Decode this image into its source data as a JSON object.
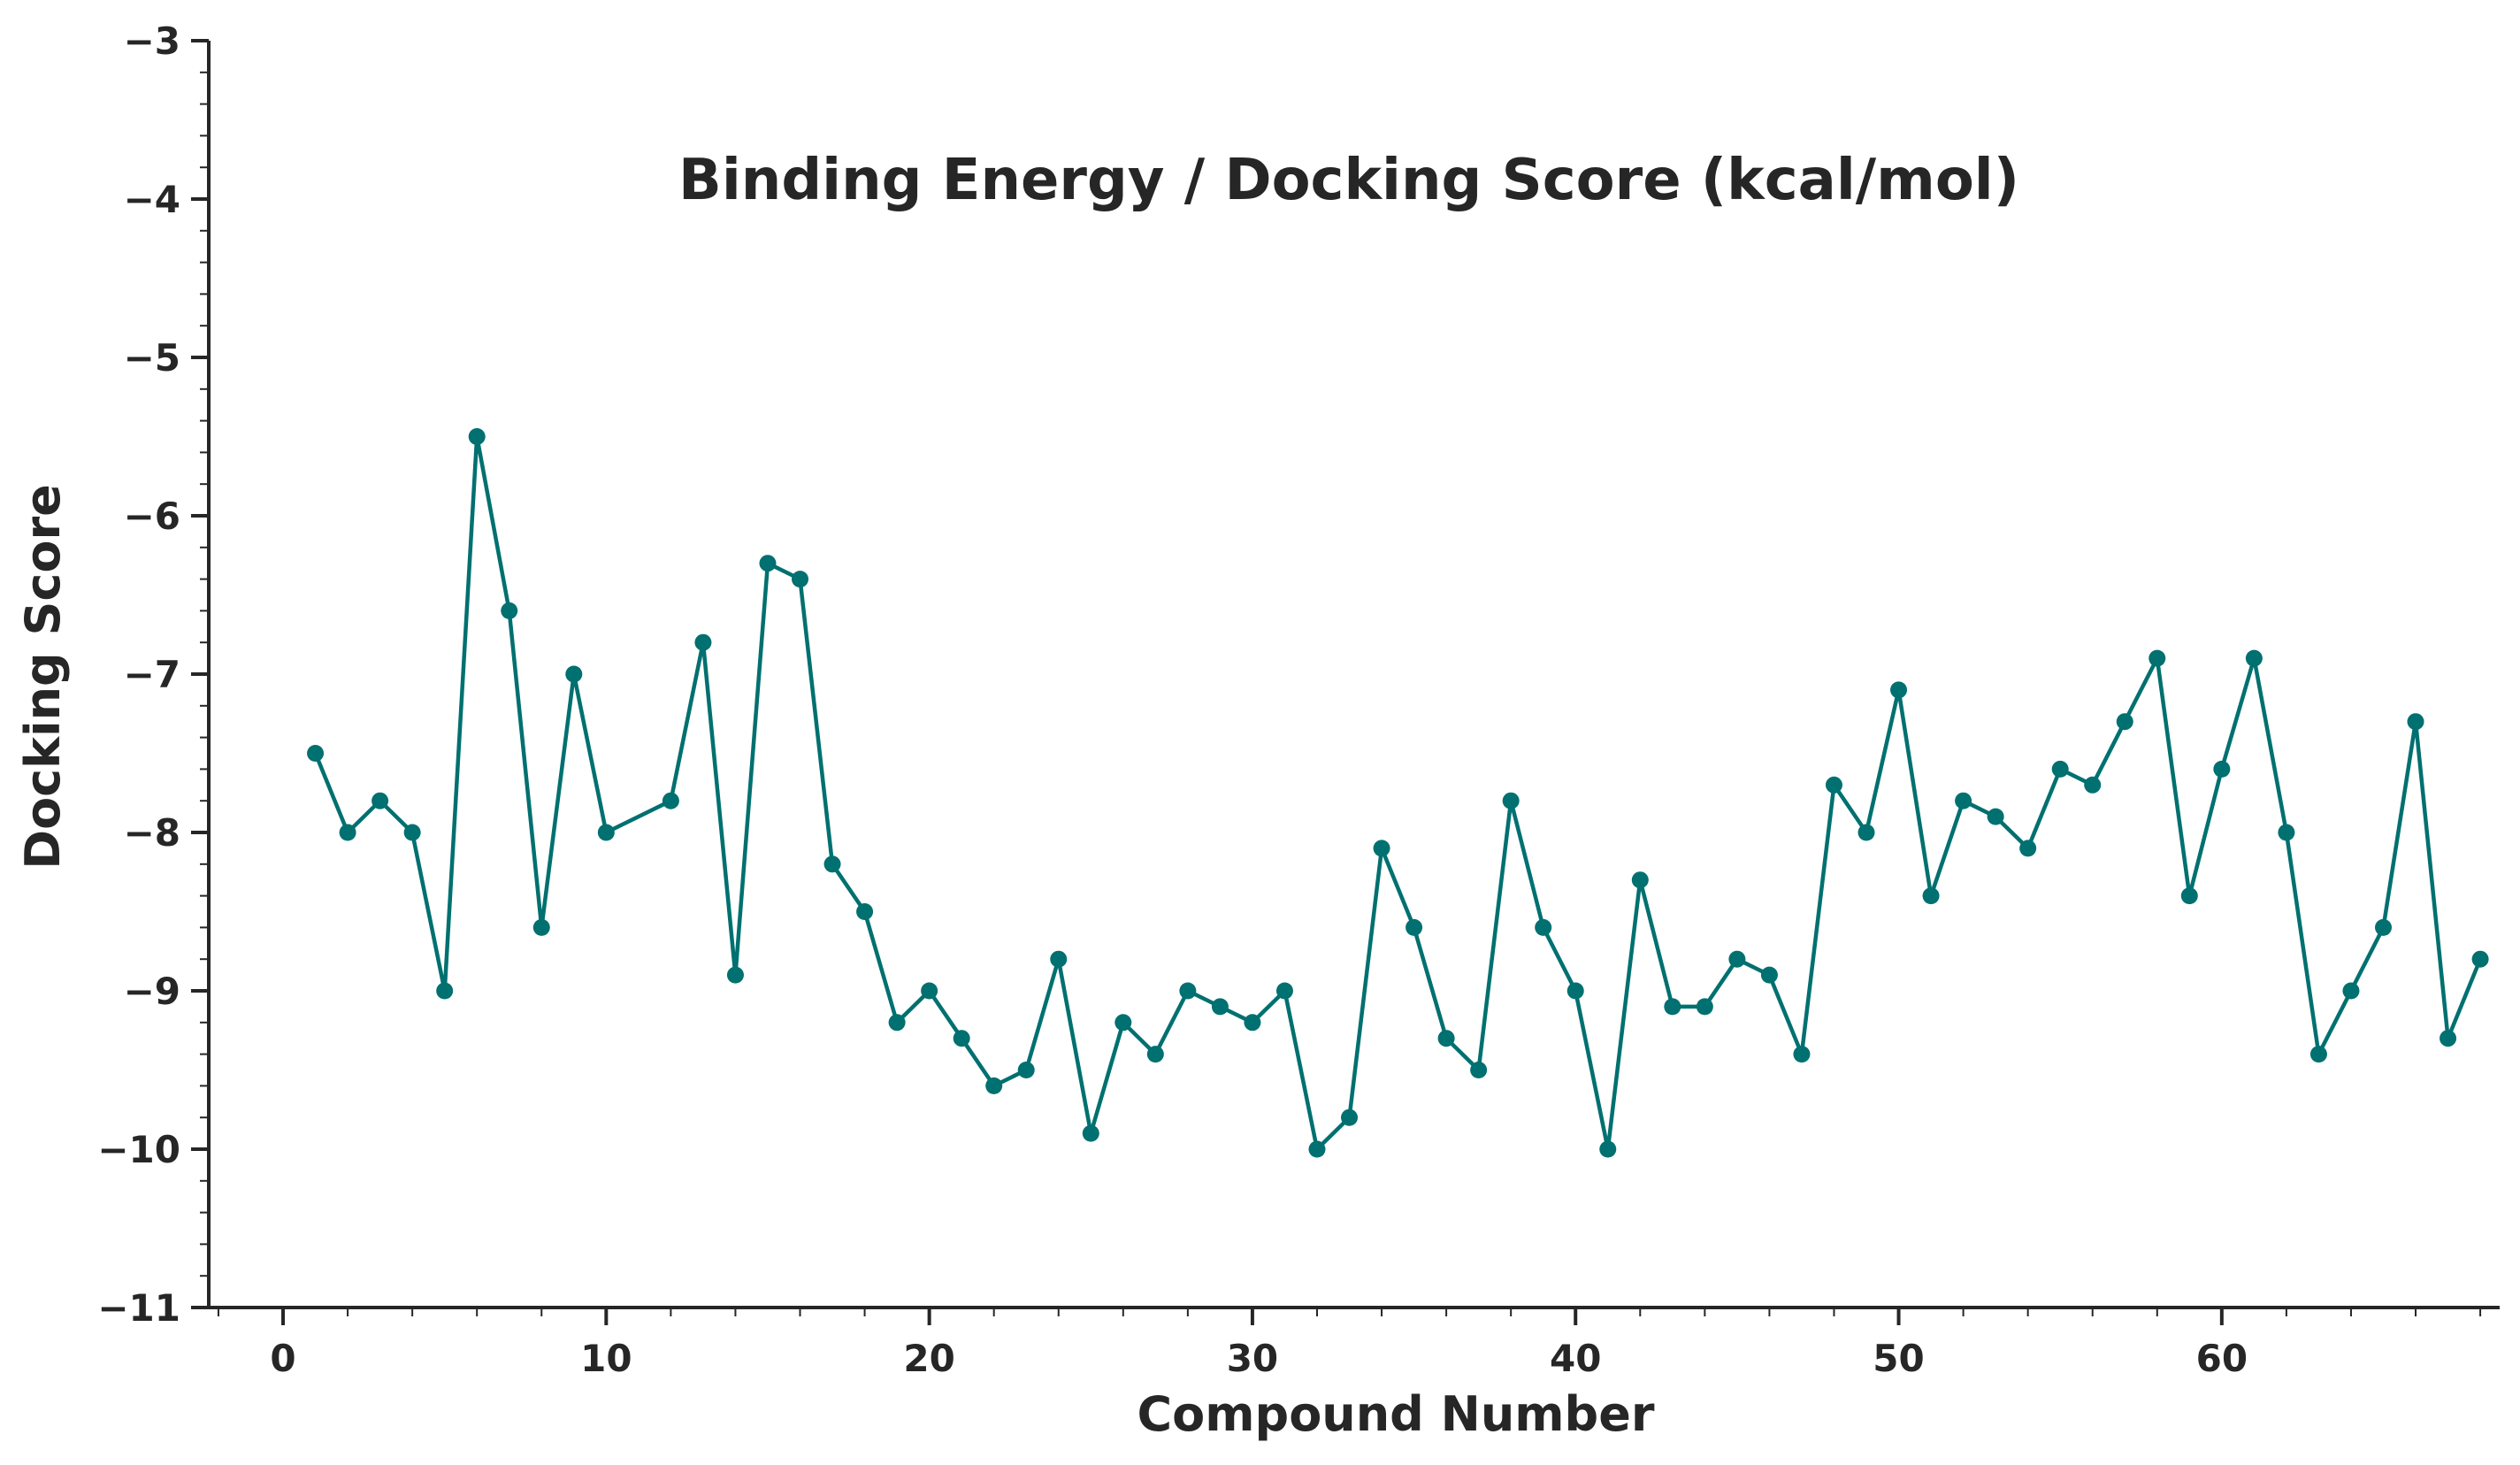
{
  "chart_data": {
    "type": "line",
    "title": "Binding Energy / Docking Score (kcal/mol)",
    "xlabel": "Compound Number",
    "ylabel": "Docking Score",
    "xlim": [
      -2.3,
      68.6
    ],
    "ylim": [
      -11,
      -3
    ],
    "xticks": [
      0,
      10,
      20,
      30,
      40,
      50,
      60
    ],
    "yticks": [
      -3,
      -4,
      -5,
      -6,
      -7,
      -8,
      -9,
      -10,
      -11
    ],
    "ytick_labels": [
      "−3",
      "−4",
      "−5",
      "−6",
      "−7",
      "−8",
      "−9",
      "−10",
      "−11"
    ],
    "grid": false,
    "legend": "none",
    "color": "#007070",
    "marker": "circle",
    "points": [
      [
        1,
        -7.5
      ],
      [
        2,
        -8.0
      ],
      [
        3,
        -7.8
      ],
      [
        4,
        -8.0
      ],
      [
        5,
        -9.0
      ],
      [
        6,
        -5.5
      ],
      [
        7,
        -6.6
      ],
      [
        8,
        -8.6
      ],
      [
        9,
        -7.0
      ],
      [
        10,
        -8.0
      ],
      [
        12,
        -7.8
      ],
      [
        13,
        -6.8
      ],
      [
        14,
        -8.9
      ],
      [
        15,
        -6.3
      ],
      [
        16,
        -6.4
      ],
      [
        17,
        -8.2
      ],
      [
        18,
        -8.5
      ],
      [
        19,
        -9.2
      ],
      [
        20,
        -9.0
      ],
      [
        21,
        -9.3
      ],
      [
        22,
        -9.6
      ],
      [
        23,
        -9.5
      ],
      [
        24,
        -8.8
      ],
      [
        25,
        -9.9
      ],
      [
        26,
        -9.2
      ],
      [
        27,
        -9.4
      ],
      [
        28,
        -9.0
      ],
      [
        29,
        -9.1
      ],
      [
        30,
        -9.2
      ],
      [
        31,
        -9.0
      ],
      [
        32,
        -10.0
      ],
      [
        33,
        -9.8
      ],
      [
        34,
        -8.1
      ],
      [
        35,
        -8.6
      ],
      [
        36,
        -9.3
      ],
      [
        37,
        -9.5
      ],
      [
        38,
        -7.8
      ],
      [
        39,
        -8.6
      ],
      [
        40,
        -9.0
      ],
      [
        41,
        -10.0
      ],
      [
        42,
        -8.3
      ],
      [
        43,
        -9.1
      ],
      [
        44,
        -9.1
      ],
      [
        45,
        -8.8
      ],
      [
        46,
        -8.9
      ],
      [
        47,
        -9.4
      ],
      [
        48,
        -7.7
      ],
      [
        49,
        -8.0
      ],
      [
        50,
        -7.1
      ],
      [
        51,
        -8.4
      ],
      [
        52,
        -7.8
      ],
      [
        53,
        -7.9
      ],
      [
        54,
        -8.1
      ],
      [
        55,
        -7.6
      ],
      [
        56,
        -7.7
      ],
      [
        57,
        -7.3
      ],
      [
        58,
        -6.9
      ],
      [
        59,
        -8.4
      ],
      [
        60,
        -7.6
      ],
      [
        61,
        -6.9
      ],
      [
        62,
        -8.0
      ],
      [
        63,
        -9.4
      ],
      [
        64,
        -9.0
      ],
      [
        65,
        -8.6
      ],
      [
        66,
        -7.3
      ],
      [
        67,
        -9.3
      ],
      [
        68,
        -8.8
      ]
    ]
  }
}
